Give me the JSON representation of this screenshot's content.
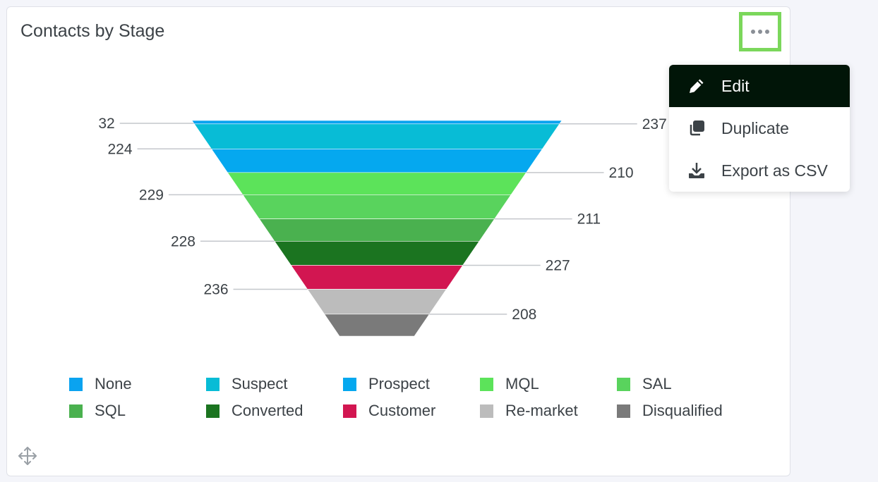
{
  "card": {
    "title": "Contacts by Stage",
    "more_icon": "more-horizontal-icon",
    "move_icon": "move-icon"
  },
  "menu": {
    "items": [
      {
        "label": "Edit",
        "icon": "pencil-icon",
        "active": true
      },
      {
        "label": "Duplicate",
        "icon": "duplicate-icon",
        "active": false
      },
      {
        "label": "Export as CSV",
        "icon": "download-icon",
        "active": false
      }
    ]
  },
  "colors": {
    "highlight_border": "#7bd75b",
    "menu_active_bg": "#011508"
  },
  "chart_data": {
    "type": "funnel",
    "title": "Contacts by Stage",
    "categories": [
      "None",
      "Suspect",
      "Prospect",
      "MQL",
      "SAL",
      "SQL",
      "Converted",
      "Customer",
      "Re-market",
      "Disqualified"
    ],
    "values": [
      32,
      237,
      224,
      210,
      229,
      211,
      228,
      227,
      236,
      208
    ],
    "colors": [
      "#0aa3f0",
      "#08bcd6",
      "#05a8ef",
      "#5ce35a",
      "#59d35d",
      "#4ab14f",
      "#1b7420",
      "#d21651",
      "#bcbcbc",
      "#7a7a7a"
    ],
    "legend_position": "bottom",
    "label_sides": [
      "left",
      "right",
      "left",
      "right",
      "left",
      "right",
      "left",
      "right",
      "left",
      "right"
    ]
  }
}
